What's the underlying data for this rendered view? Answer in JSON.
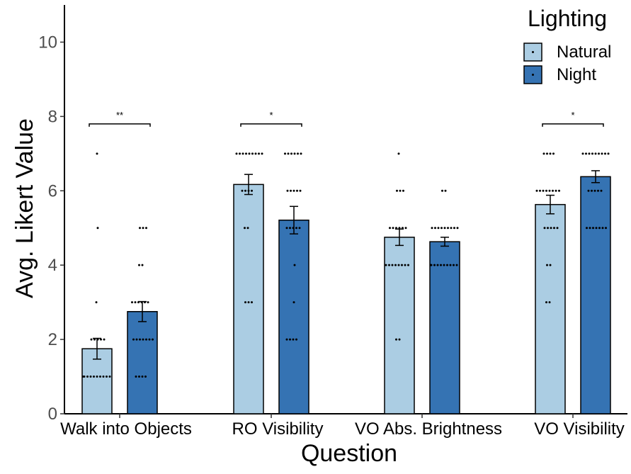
{
  "chart_data": {
    "type": "bar",
    "title": "",
    "xlabel": "Question",
    "ylabel": "Avg. Likert Value",
    "ylim": [
      0,
      11
    ],
    "yticks": [
      0,
      2,
      4,
      6,
      8,
      10
    ],
    "grid": false,
    "legend": {
      "title": "Lighting",
      "placement": "top-right"
    },
    "categories": [
      "Walk into Objects",
      "RO  Visibility",
      "VO Abs. Brightness",
      "VO Visibility"
    ],
    "series": [
      {
        "name": "Natural",
        "color": "#abcde3",
        "values": [
          1.75,
          6.17,
          4.75,
          5.63
        ],
        "errors": [
          0.28,
          0.27,
          0.22,
          0.25
        ],
        "points": [
          [
            1,
            1,
            1,
            1,
            1,
            1,
            1,
            1,
            1,
            1,
            2,
            2,
            2,
            2,
            2,
            3,
            5,
            7
          ],
          [
            3,
            3,
            3,
            5,
            5,
            6,
            6,
            6,
            6,
            7,
            7,
            7,
            7,
            7,
            7,
            7,
            7,
            7
          ],
          [
            2,
            2,
            4,
            4,
            4,
            4,
            4,
            4,
            4,
            4,
            5,
            5,
            5,
            5,
            5,
            5,
            6,
            6,
            6,
            7
          ],
          [
            3,
            3,
            4,
            4,
            5,
            5,
            5,
            5,
            5,
            6,
            6,
            6,
            6,
            6,
            6,
            6,
            6,
            7,
            7,
            7,
            7
          ]
        ]
      },
      {
        "name": "Night",
        "color": "#3573b3",
        "values": [
          2.75,
          5.21,
          4.63,
          6.38
        ],
        "errors": [
          0.27,
          0.37,
          0.12,
          0.16
        ],
        "points": [
          [
            1,
            1,
            1,
            1,
            2,
            2,
            2,
            2,
            2,
            2,
            2,
            3,
            3,
            3,
            3,
            3,
            3,
            4,
            4,
            5,
            5,
            5
          ],
          [
            2,
            2,
            2,
            2,
            3,
            4,
            5,
            5,
            5,
            5,
            5,
            6,
            6,
            6,
            6,
            6,
            7,
            7,
            7,
            7,
            7,
            7
          ],
          [
            4,
            4,
            4,
            4,
            4,
            4,
            4,
            4,
            4,
            4,
            5,
            5,
            5,
            5,
            5,
            5,
            5,
            5,
            5,
            6,
            6
          ],
          [
            5,
            5,
            5,
            5,
            5,
            5,
            5,
            6,
            6,
            6,
            6,
            6,
            7,
            7,
            7,
            7,
            7,
            7,
            7,
            7,
            7
          ]
        ]
      }
    ],
    "significance": [
      {
        "category": "Walk into Objects",
        "label": "**"
      },
      {
        "category": "RO  Visibility",
        "label": "*"
      },
      {
        "category": "VO Visibility",
        "label": "*"
      }
    ]
  }
}
